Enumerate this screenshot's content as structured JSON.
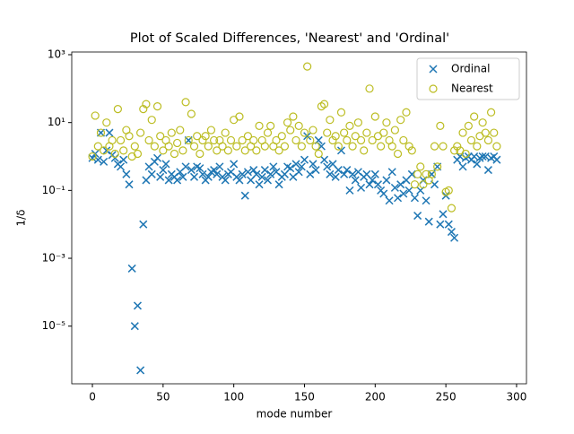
{
  "chart_data": {
    "type": "scatter",
    "title": "Plot of Scaled Differences, 'Nearest' and 'Ordinal'",
    "xlabel": "mode number",
    "ylabel": "1/δ",
    "log_y": true,
    "legend": "upper right",
    "xlim": [
      -14.6,
      307
    ],
    "ylim": [
      2e-07,
      1200
    ],
    "xticks": [
      0,
      50,
      100,
      150,
      200,
      250,
      300
    ],
    "yticks": [
      {
        "value": 1e-05,
        "label": "10⁻⁵"
      },
      {
        "value": 0.001,
        "label": "10⁻³"
      },
      {
        "value": 0.1,
        "label": "10⁻¹"
      },
      {
        "value": 10,
        "label": "10¹"
      },
      {
        "value": 1000,
        "label": "10³"
      }
    ],
    "x": [
      0,
      2,
      4,
      6,
      8,
      10,
      12,
      14,
      16,
      18,
      20,
      22,
      24,
      26,
      28,
      30,
      32,
      34,
      36,
      38,
      40,
      42,
      44,
      46,
      48,
      50,
      52,
      54,
      56,
      58,
      60,
      62,
      64,
      66,
      68,
      70,
      72,
      74,
      76,
      78,
      80,
      82,
      84,
      86,
      88,
      90,
      92,
      94,
      96,
      98,
      100,
      102,
      104,
      106,
      108,
      110,
      112,
      114,
      116,
      118,
      120,
      122,
      124,
      126,
      128,
      130,
      132,
      134,
      136,
      138,
      140,
      142,
      144,
      146,
      148,
      150,
      152,
      154,
      156,
      158,
      160,
      162,
      164,
      166,
      168,
      170,
      172,
      174,
      176,
      178,
      180,
      182,
      184,
      186,
      188,
      190,
      192,
      194,
      196,
      198,
      200,
      202,
      204,
      206,
      208,
      210,
      212,
      214,
      216,
      218,
      220,
      222,
      224,
      226,
      228,
      230,
      232,
      234,
      236,
      238,
      240,
      242,
      244,
      246,
      248,
      250,
      252,
      254,
      256,
      258,
      260,
      262,
      264,
      266,
      268,
      270,
      272,
      274,
      276,
      278,
      280,
      282,
      284,
      286
    ],
    "series": [
      {
        "name": "Ordinal",
        "marker": "x",
        "color": "#1f77b4",
        "values": [
          0.9,
          1.2,
          0.8,
          5,
          0.7,
          1.5,
          5,
          1.1,
          0.9,
          0.6,
          0.5,
          0.8,
          0.3,
          0.15,
          0.0005,
          1e-05,
          4e-05,
          5e-07,
          0.01,
          0.2,
          0.5,
          0.3,
          0.7,
          0.9,
          0.25,
          0.4,
          0.6,
          0.2,
          0.3,
          0.25,
          0.2,
          0.35,
          0.25,
          0.5,
          3,
          0.4,
          0.25,
          0.5,
          0.45,
          0.3,
          0.2,
          0.25,
          0.35,
          0.4,
          0.3,
          0.5,
          0.25,
          0.2,
          0.3,
          0.35,
          0.6,
          0.25,
          0.2,
          0.3,
          0.07,
          0.35,
          0.2,
          0.4,
          0.3,
          0.15,
          0.25,
          0.4,
          0.2,
          0.3,
          0.5,
          0.35,
          0.15,
          0.25,
          0.3,
          0.5,
          0.45,
          0.25,
          0.6,
          0.35,
          0.5,
          0.8,
          4,
          0.3,
          0.6,
          0.4,
          3,
          2,
          0.8,
          0.5,
          0.3,
          0.6,
          0.25,
          0.4,
          1.5,
          0.3,
          0.4,
          0.1,
          0.3,
          0.2,
          0.35,
          0.12,
          0.25,
          0.3,
          0.15,
          0.2,
          0.3,
          0.15,
          0.1,
          0.08,
          0.2,
          0.05,
          0.35,
          0.12,
          0.06,
          0.15,
          0.08,
          0.2,
          0.1,
          0.3,
          0.06,
          0.018,
          0.1,
          0.2,
          0.05,
          0.012,
          0.3,
          0.15,
          0.5,
          0.01,
          0.02,
          0.07,
          0.01,
          0.006,
          0.004,
          0.8,
          1,
          0.5,
          0.9,
          1,
          0.8,
          1,
          0.6,
          0.9,
          1,
          1,
          0.4,
          0.9,
          1,
          0.8
        ]
      },
      {
        "name": "Nearest",
        "marker": "o",
        "color": "#bcbd22",
        "values": [
          1,
          16,
          2,
          5,
          1.5,
          10,
          2,
          3,
          1.2,
          25,
          3,
          1.5,
          6,
          4,
          1,
          2,
          1.2,
          5,
          25,
          35,
          3,
          12,
          2,
          30,
          4,
          1.5,
          3,
          2,
          5,
          1.2,
          2.5,
          6,
          1.5,
          40,
          3,
          18,
          2,
          4,
          1.2,
          3,
          4,
          2,
          6,
          3,
          1.5,
          3,
          2,
          5,
          1.5,
          3,
          12,
          2,
          15,
          3,
          1.5,
          4,
          2,
          3,
          1.5,
          8,
          3,
          2,
          5,
          8,
          2,
          3,
          1.5,
          4,
          2,
          10,
          6,
          15,
          3,
          8,
          2,
          5,
          450,
          3,
          6,
          2,
          1.2,
          30,
          35,
          5,
          12,
          3,
          4,
          2,
          20,
          5,
          3,
          8,
          2,
          4,
          10,
          3,
          1.5,
          5,
          100,
          3,
          15,
          4,
          2,
          5,
          10,
          3,
          2,
          6,
          1.2,
          12,
          3,
          20,
          2,
          1.5,
          0.15,
          0.3,
          0.5,
          0.15,
          0.3,
          0.2,
          0.3,
          2,
          0.5,
          8,
          2,
          0.09,
          0.1,
          0.03,
          1.5,
          2,
          1.5,
          5,
          1.2,
          8,
          3,
          15,
          2,
          4,
          10,
          5,
          3,
          20,
          5,
          2
        ]
      }
    ]
  }
}
